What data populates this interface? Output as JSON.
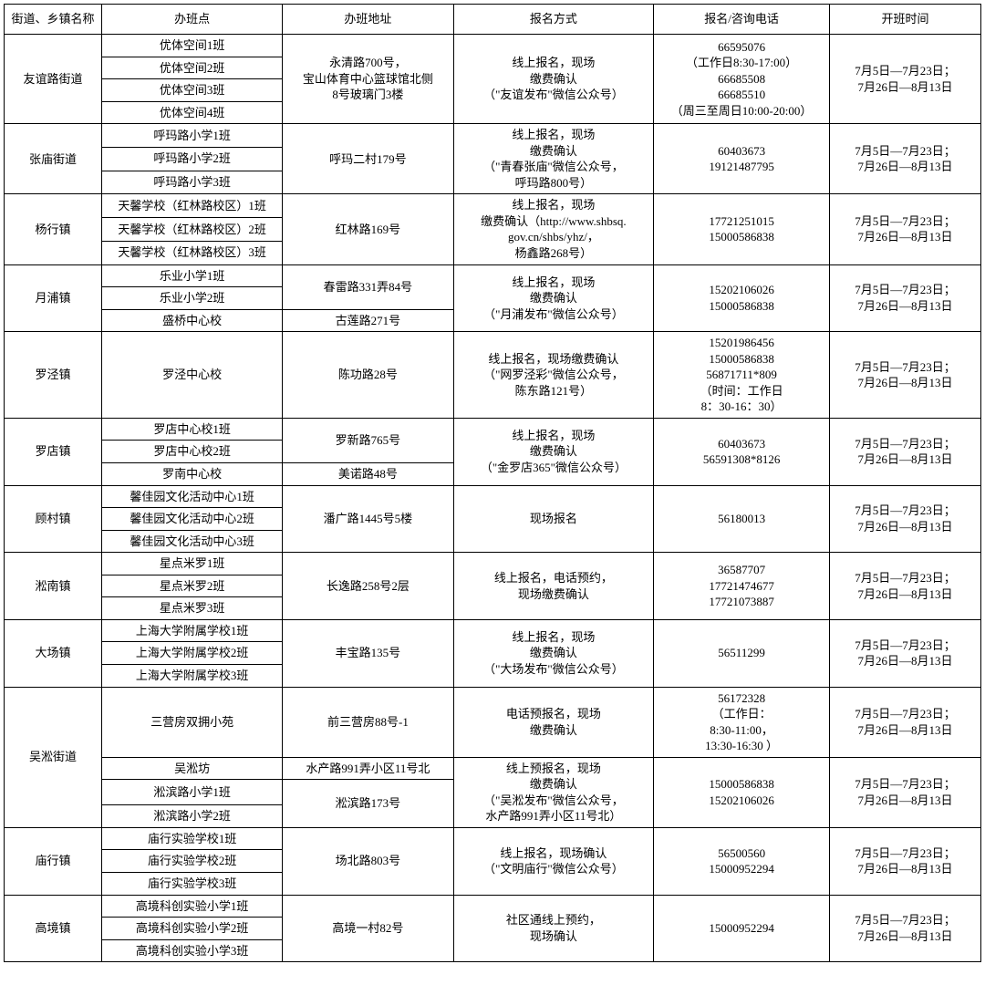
{
  "headers": [
    "街道、乡镇名称",
    "办班点",
    "办班地址",
    "报名方式",
    "报名/咨询电话",
    "开班时间"
  ],
  "schedule_default": "7月5日—7月23日；\n7月26日—8月13日",
  "groups": [
    {
      "district": "友谊路街道",
      "address": "永清路700号，\n宝山体育中心篮球馆北侧\n8号玻璃门3楼",
      "method": "线上报名，现场\n缴费确认\n（\"友谊发布\"微信公众号）",
      "phone": "66595076\n（工作日8:30-17:00）\n66685508\n66685510\n（周三至周日10:00-20:00）",
      "classes": [
        "优体空间1班",
        "优体空间2班",
        "优体空间3班",
        "优体空间4班"
      ]
    },
    {
      "district": "张庙街道",
      "address": "呼玛二村179号",
      "method": "线上报名，现场\n缴费确认\n（\"青春张庙\"微信公众号，\n呼玛路800号）",
      "phone": "60403673\n19121487795",
      "classes": [
        "呼玛路小学1班",
        "呼玛路小学2班",
        "呼玛路小学3班"
      ]
    },
    {
      "district": "杨行镇",
      "address": "红林路169号",
      "method": "线上报名，现场\n缴费确认（http://www.shbsq.\ngov.cn/shbs/yhz/，\n杨鑫路268号）",
      "phone": "17721251015\n15000586838",
      "classes": [
        "天馨学校（红林路校区）1班",
        "天馨学校（红林路校区）2班",
        "天馨学校（红林路校区）3班"
      ]
    },
    {
      "district": "月浦镇",
      "method": "线上报名，现场\n缴费确认\n（\"月浦发布\"微信公众号）",
      "phone": "15202106026\n15000586838",
      "rows": [
        {
          "class": "乐业小学1班",
          "address": "春雷路331弄84号",
          "addr_rowspan": 2
        },
        {
          "class": "乐业小学2班"
        },
        {
          "class": "盛桥中心校",
          "address": "古莲路271号",
          "addr_rowspan": 1
        }
      ]
    },
    {
      "district": "罗泾镇",
      "address": "陈功路28号",
      "method": "线上报名，现场缴费确认\n（\"网罗泾彩\"微信公众号，\n陈东路121号）",
      "phone": "15201986456\n15000586838\n56871711*809\n（时间：工作日\n8：30-16：30）",
      "classes": [
        "罗泾中心校"
      ]
    },
    {
      "district": "罗店镇",
      "method": "线上报名，现场\n缴费确认\n（\"金罗店365\"微信公众号）",
      "phone": "60403673\n56591308*8126",
      "rows": [
        {
          "class": "罗店中心校1班",
          "address": "罗新路765号",
          "addr_rowspan": 2
        },
        {
          "class": "罗店中心校2班"
        },
        {
          "class": "罗南中心校",
          "address": "美诺路48号",
          "addr_rowspan": 1
        }
      ]
    },
    {
      "district": "顾村镇",
      "address": "潘广路1445号5楼",
      "method": "现场报名",
      "phone": "56180013",
      "classes": [
        "馨佳园文化活动中心1班",
        "馨佳园文化活动中心2班",
        "馨佳园文化活动中心3班"
      ]
    },
    {
      "district": "淞南镇",
      "address": "长逸路258号2层",
      "method": "线上报名，电话预约，\n现场缴费确认",
      "phone": "36587707\n17721474677\n17721073887",
      "classes": [
        "星点米罗1班",
        "星点米罗2班",
        "星点米罗3班"
      ]
    },
    {
      "district": "大场镇",
      "address": "丰宝路135号",
      "method": "线上报名，现场\n缴费确认\n（\"大场发布\"微信公众号）",
      "phone": "56511299",
      "classes": [
        "上海大学附属学校1班",
        "上海大学附属学校2班",
        "上海大学附属学校3班"
      ]
    },
    {
      "district": "吴淞街道",
      "full_rowspan": 4,
      "subgroups": [
        {
          "method": "电话预报名，现场\n缴费确认",
          "phone": "56172328\n（工作日：\n8:30-11:00，\n13:30-16:30 ）",
          "sub_rowspan": 1,
          "rows": [
            {
              "class": "三营房双拥小苑",
              "address": "前三营房88号-1",
              "addr_rowspan": 1
            }
          ]
        },
        {
          "method": "线上预报名，现场\n缴费确认\n（\"吴淞发布\"微信公众号，\n水产路991弄小区11号北）",
          "phone": "15000586838\n15202106026",
          "sub_rowspan": 3,
          "rows": [
            {
              "class": "吴淞坊",
              "address": "水产路991弄小区11号北",
              "addr_rowspan": 1
            },
            {
              "class": "淞滨路小学1班",
              "address": "淞滨路173号",
              "addr_rowspan": 2
            },
            {
              "class": "淞滨路小学2班"
            }
          ]
        }
      ]
    },
    {
      "district": "庙行镇",
      "address": "场北路803号",
      "method": "线上报名，现场确认\n（\"文明庙行\"微信公众号）",
      "phone": "56500560\n15000952294",
      "classes": [
        "庙行实验学校1班",
        "庙行实验学校2班",
        "庙行实验学校3班"
      ]
    },
    {
      "district": "高境镇",
      "address": "高境一村82号",
      "method": "社区通线上预约，\n现场确认",
      "phone": "15000952294",
      "classes": [
        "高境科创实验小学1班",
        "高境科创实验小学2班",
        "高境科创实验小学3班"
      ]
    }
  ]
}
